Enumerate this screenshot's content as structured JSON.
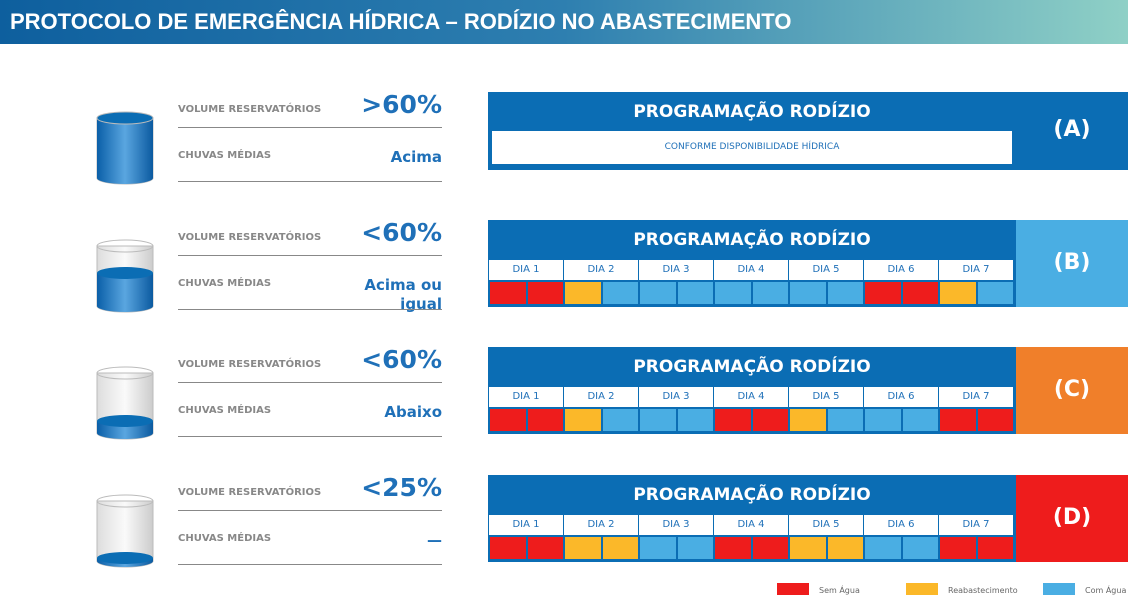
{
  "title": "PROTOCOLO DE EMERGÊNCIA HÍDRICA – RODÍZIO NO ABASTECIMENTO",
  "rows": [
    {
      "volume_label": "VOLUME RESERVATÓRIOS",
      "volume_value": ">60%",
      "rain_label": "CHUVAS MÉDIAS",
      "rain_value": "Acima",
      "schedule_title": "PROGRAMAÇÃO RODÍZIO",
      "note": "CONFORME DISPONIBILIDADE HÍDRICA",
      "level": "(A)",
      "level_color": "#0b6db4"
    },
    {
      "volume_label": "VOLUME RESERVATÓRIOS",
      "volume_value": "<60%",
      "rain_label": "CHUVAS MÉDIAS",
      "rain_value": "Acima ou igual",
      "schedule_title": "PROGRAMAÇÃO RODÍZIO",
      "days": [
        "DIA 1",
        "DIA 2",
        "DIA 3",
        "DIA 4",
        "DIA 5",
        "DIA 6",
        "DIA 7"
      ],
      "cells": [
        "#ee1c1c",
        "#ee1c1c",
        "#fbb829",
        "#4aaee3",
        "#4aaee3",
        "#4aaee3",
        "#4aaee3",
        "#4aaee3",
        "#4aaee3",
        "#4aaee3",
        "#ee1c1c",
        "#ee1c1c",
        "#fbb829",
        "#4aaee3"
      ],
      "level": "(B)",
      "level_color": "#4aaee3"
    },
    {
      "volume_label": "VOLUME RESERVATÓRIOS",
      "volume_value": "<60%",
      "rain_label": "CHUVAS MÉDIAS",
      "rain_value": "Abaixo",
      "schedule_title": "PROGRAMAÇÃO RODÍZIO",
      "days": [
        "DIA 1",
        "DIA 2",
        "DIA 3",
        "DIA 4",
        "DIA 5",
        "DIA 6",
        "DIA 7"
      ],
      "cells": [
        "#ee1c1c",
        "#ee1c1c",
        "#fbb829",
        "#4aaee3",
        "#4aaee3",
        "#4aaee3",
        "#ee1c1c",
        "#ee1c1c",
        "#fbb829",
        "#4aaee3",
        "#4aaee3",
        "#4aaee3",
        "#ee1c1c",
        "#ee1c1c"
      ],
      "level": "(C)",
      "level_color": "#f07f2a"
    },
    {
      "volume_label": "VOLUME RESERVATÓRIOS",
      "volume_value": "<25%",
      "rain_label": "CHUVAS MÉDIAS",
      "rain_value": "—",
      "schedule_title": "PROGRAMAÇÃO RODÍZIO",
      "days": [
        "DIA 1",
        "DIA 2",
        "DIA 3",
        "DIA 4",
        "DIA 5",
        "DIA 6",
        "DIA 7"
      ],
      "cells": [
        "#ee1c1c",
        "#ee1c1c",
        "#fbb829",
        "#fbb829",
        "#4aaee3",
        "#4aaee3",
        "#ee1c1c",
        "#ee1c1c",
        "#fbb829",
        "#fbb829",
        "#4aaee3",
        "#4aaee3",
        "#ee1c1c",
        "#ee1c1c"
      ],
      "level": "(D)",
      "level_color": "#ee1c1c"
    }
  ],
  "legend": [
    {
      "label": "Sem Água",
      "color": "#ee1c1c"
    },
    {
      "label": "Reabastecimento",
      "color": "#fbb829"
    },
    {
      "label": "Com Água",
      "color": "#4aaee3"
    }
  ]
}
